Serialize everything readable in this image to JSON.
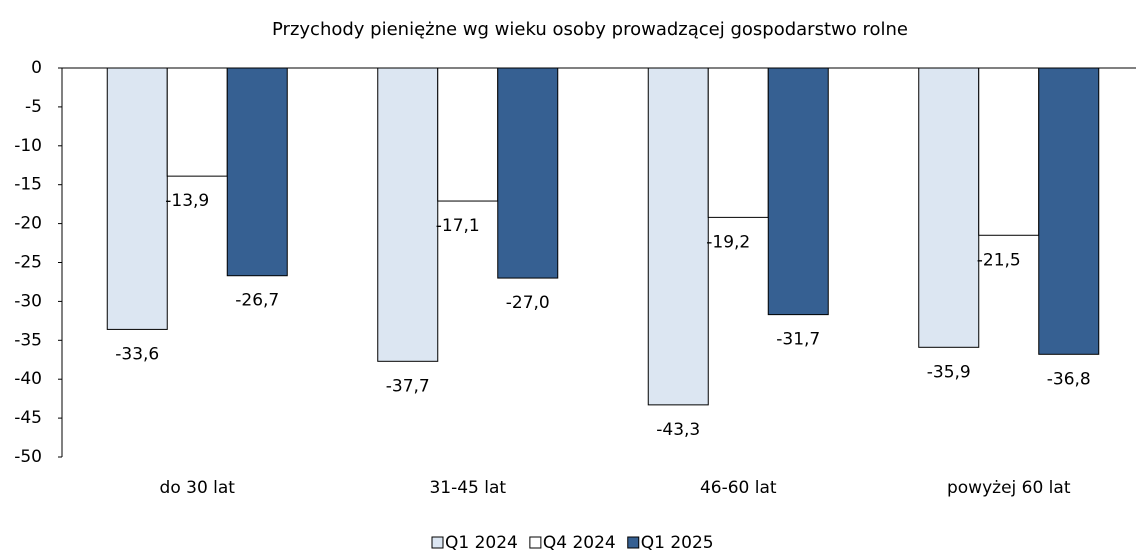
{
  "chart_data": {
    "type": "bar",
    "title": "Przychody pieniężne wg wieku osoby prowadzącej gospodarstwo rolne",
    "categories": [
      "do 30 lat",
      "31-45 lat",
      "46-60 lat",
      "powyżej 60 lat"
    ],
    "series": [
      {
        "name": "Q1 2024",
        "color": "#dce6f2",
        "values": [
          -33.6,
          -37.7,
          -43.3,
          -35.9
        ],
        "value_labels": [
          "-33,6",
          "-37,7",
          "-43,3",
          "-35,9"
        ]
      },
      {
        "name": "Q4 2024",
        "color": "#ffffff",
        "values": [
          -13.9,
          -17.1,
          -19.2,
          -21.5
        ],
        "value_labels": [
          "-13,9",
          "-17,1",
          "-19,2",
          "-21,5"
        ]
      },
      {
        "name": "Q1 2025",
        "color": "#366092",
        "values": [
          -26.7,
          -27.0,
          -31.7,
          -36.8
        ],
        "value_labels": [
          "-26,7",
          "-27,0",
          "-31,7",
          "-36,8"
        ]
      }
    ],
    "ylim": [
      -50,
      0
    ],
    "yticks": [
      0,
      -5,
      -10,
      -15,
      -20,
      -25,
      -30,
      -35,
      -40,
      -45,
      -50
    ],
    "legend": "bottom"
  }
}
